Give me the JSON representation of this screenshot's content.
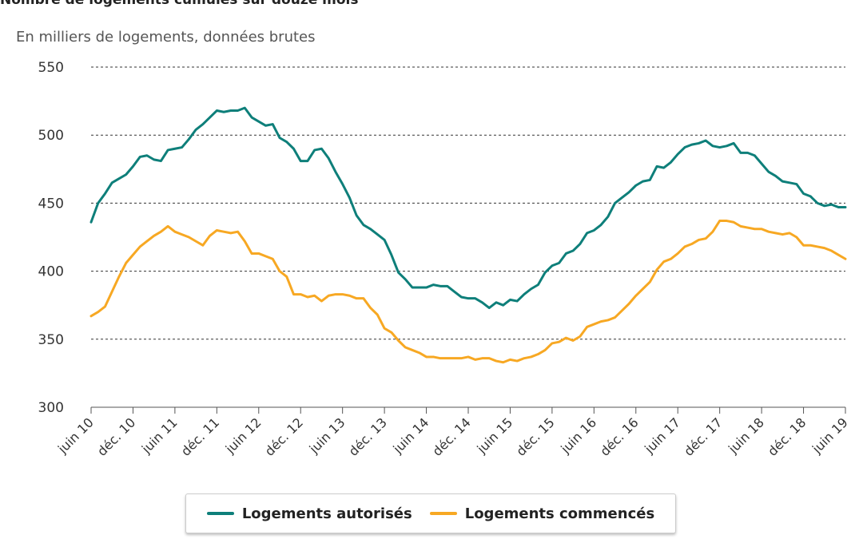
{
  "chart_data": {
    "type": "line",
    "title": "Nombre de logements cumulés sur douze mois",
    "subtitle": "En milliers de logements, données brutes",
    "ylim": [
      300,
      550
    ],
    "yticks": [
      300,
      350,
      400,
      450,
      500,
      550
    ],
    "x": [
      "juin 10",
      "juil. 10",
      "août 10",
      "sept. 10",
      "oct. 10",
      "nov. 10",
      "déc. 10",
      "janv. 11",
      "févr. 11",
      "mars 11",
      "avr. 11",
      "mai 11",
      "juin 11",
      "juil. 11",
      "août 11",
      "sept. 11",
      "oct. 11",
      "nov. 11",
      "déc. 11",
      "janv. 12",
      "févr. 12",
      "mars 12",
      "avr. 12",
      "mai 12",
      "juin 12",
      "juil. 12",
      "août 12",
      "sept. 12",
      "oct. 12",
      "nov. 12",
      "déc. 12",
      "janv. 13",
      "févr. 13",
      "mars 13",
      "avr. 13",
      "mai 13",
      "juin 13",
      "juil. 13",
      "août 13",
      "sept. 13",
      "oct. 13",
      "nov. 13",
      "déc. 13",
      "janv. 14",
      "févr. 14",
      "mars 14",
      "avr. 14",
      "mai 14",
      "juin 14",
      "juil. 14",
      "août 14",
      "sept. 14",
      "oct. 14",
      "nov. 14",
      "déc. 14",
      "janv. 15",
      "févr. 15",
      "mars 15",
      "avr. 15",
      "mai 15",
      "juin 15",
      "juil. 15",
      "août 15",
      "sept. 15",
      "oct. 15",
      "nov. 15",
      "déc. 15",
      "janv. 16",
      "févr. 16",
      "mars 16",
      "avr. 16",
      "mai 16",
      "juin 16",
      "juil. 16",
      "août 16",
      "sept. 16",
      "oct. 16",
      "nov. 16",
      "déc. 16",
      "janv. 17",
      "févr. 17",
      "mars 17",
      "avr. 17",
      "mai 17",
      "juin 17",
      "juil. 17",
      "août 17",
      "sept. 17",
      "oct. 17",
      "nov. 17",
      "déc. 17",
      "janv. 18",
      "févr. 18",
      "mars 18",
      "avr. 18",
      "mai 18",
      "juin 18",
      "juil. 18",
      "août 18",
      "sept. 18",
      "oct. 18",
      "nov. 18",
      "déc. 18",
      "janv. 19",
      "févr. 19",
      "mars 19",
      "avr. 19",
      "mai 19",
      "juin 19"
    ],
    "xtick_labels": [
      "juin 10",
      "déc. 10",
      "juin 11",
      "déc. 11",
      "juin 12",
      "déc. 12",
      "juin 13",
      "déc. 13",
      "juin 14",
      "déc. 14",
      "juin 15",
      "déc. 15",
      "juin 16",
      "déc. 16",
      "juin 17",
      "déc. 17",
      "juin 18",
      "déc. 18",
      "juin 19"
    ],
    "grid": "horizontal dashed",
    "legend_position": "bottom",
    "series": [
      {
        "name": "Logements autorisés",
        "color": "#0e7f7a",
        "values": [
          436,
          450,
          457,
          465,
          468,
          471,
          477,
          484,
          485,
          482,
          481,
          489,
          490,
          491,
          497,
          504,
          508,
          513,
          518,
          517,
          518,
          518,
          520,
          513,
          510,
          507,
          508,
          498,
          495,
          490,
          481,
          481,
          489,
          490,
          483,
          473,
          464,
          454,
          441,
          434,
          431,
          427,
          423,
          412,
          399,
          394,
          388,
          388,
          388,
          390,
          389,
          389,
          385,
          381,
          380,
          380,
          377,
          373,
          377,
          375,
          379,
          378,
          383,
          387,
          390,
          399,
          404,
          406,
          413,
          415,
          420,
          428,
          430,
          434,
          440,
          450,
          454,
          458,
          463,
          466,
          467,
          477,
          476,
          480,
          486,
          491,
          493,
          494,
          496,
          492,
          491,
          492,
          494,
          487,
          487,
          485,
          479,
          473,
          470,
          466,
          465,
          464,
          457,
          455,
          450,
          448,
          449,
          447,
          447
        ]
      },
      {
        "name": "Logements commencés",
        "color": "#f7a823",
        "values": [
          367,
          370,
          374,
          385,
          396,
          406,
          412,
          418,
          422,
          426,
          429,
          433,
          429,
          427,
          425,
          422,
          419,
          426,
          430,
          429,
          428,
          429,
          422,
          413,
          413,
          411,
          409,
          400,
          396,
          383,
          383,
          381,
          382,
          378,
          382,
          383,
          383,
          382,
          380,
          380,
          373,
          368,
          358,
          355,
          349,
          344,
          342,
          340,
          337,
          337,
          336,
          336,
          336,
          336,
          337,
          335,
          336,
          336,
          334,
          333,
          335,
          334,
          336,
          337,
          339,
          342,
          347,
          348,
          351,
          349,
          352,
          359,
          361,
          363,
          364,
          366,
          371,
          376,
          382,
          387,
          392,
          401,
          407,
          409,
          413,
          418,
          420,
          423,
          424,
          429,
          437,
          437,
          436,
          433,
          432,
          431,
          431,
          429,
          428,
          427,
          428,
          425,
          419,
          419,
          418,
          417,
          415,
          412,
          409
        ]
      }
    ]
  }
}
